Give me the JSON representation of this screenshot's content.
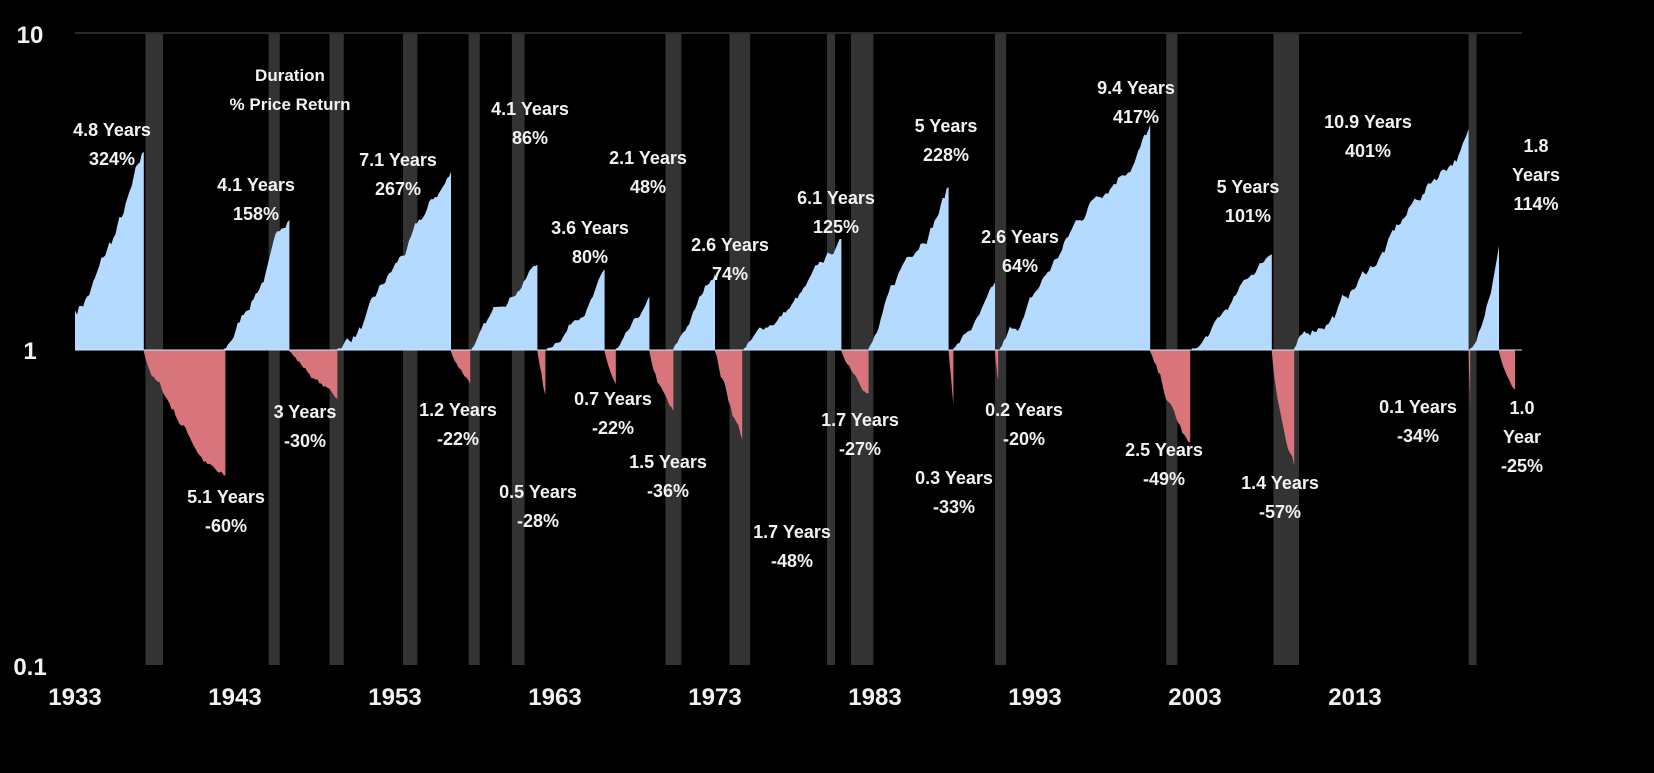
{
  "chart_data": {
    "type": "area",
    "title": "",
    "legend_annotation": [
      "Duration",
      "% Price Return"
    ],
    "y_scale": "log",
    "ylim": [
      0.1,
      10
    ],
    "xlim": [
      1933,
      2023
    ],
    "y_ticks": [
      "10",
      "1",
      "0.1"
    ],
    "x_ticks": [
      "1933",
      "1943",
      "1953",
      "1963",
      "1973",
      "1983",
      "1993",
      "2003",
      "2013"
    ],
    "grid": false,
    "colors": {
      "background": "#000000",
      "bull": "#b5daff",
      "bear": "#d8757c",
      "recession": "#333333",
      "text": "#f2f2f2"
    },
    "episodes": [
      {
        "type": "bull",
        "start": 1932.5,
        "duration": "4.8 Years",
        "years": 4.8,
        "return": "324%",
        "pct": 324
      },
      {
        "type": "bear",
        "start": 1937.3,
        "duration": "5.1 Years",
        "years": 5.1,
        "return": "-60%",
        "pct": -60
      },
      {
        "type": "bull",
        "start": 1942.3,
        "duration": "4.1 Years",
        "years": 4.1,
        "return": "158%",
        "pct": 158
      },
      {
        "type": "bear",
        "start": 1946.4,
        "duration": "3 Years",
        "years": 3.0,
        "return": "-30%",
        "pct": -30
      },
      {
        "type": "bull",
        "start": 1949.4,
        "duration": "7.1 Years",
        "years": 7.1,
        "return": "267%",
        "pct": 267
      },
      {
        "type": "bear",
        "start": 1956.5,
        "duration": "1.2 Years",
        "years": 1.2,
        "return": "-22%",
        "pct": -22
      },
      {
        "type": "bull",
        "start": 1957.8,
        "duration": "4.1 Years",
        "years": 4.1,
        "return": "86%",
        "pct": 86
      },
      {
        "type": "bear",
        "start": 1961.9,
        "duration": "0.5 Years",
        "years": 0.5,
        "return": "-28%",
        "pct": -28
      },
      {
        "type": "bull",
        "start": 1962.5,
        "duration": "3.6 Years",
        "years": 3.6,
        "return": "80%",
        "pct": 80
      },
      {
        "type": "bear",
        "start": 1966.1,
        "duration": "0.7 Years",
        "years": 0.7,
        "return": "-22%",
        "pct": -22
      },
      {
        "type": "bull",
        "start": 1966.8,
        "duration": "2.1 Years",
        "years": 2.1,
        "return": "48%",
        "pct": 48
      },
      {
        "type": "bear",
        "start": 1968.9,
        "duration": "1.5 Years",
        "years": 1.5,
        "return": "-36%",
        "pct": -36
      },
      {
        "type": "bull",
        "start": 1970.4,
        "duration": "2.6 Years",
        "years": 2.6,
        "return": "74%",
        "pct": 74
      },
      {
        "type": "bear",
        "start": 1973.0,
        "duration": "1.7 Years",
        "years": 1.7,
        "return": "-48%",
        "pct": -48
      },
      {
        "type": "bull",
        "start": 1974.8,
        "duration": "6.1 Years",
        "years": 6.1,
        "return": "125%",
        "pct": 125
      },
      {
        "type": "bear",
        "start": 1980.9,
        "duration": "1.7 Years",
        "years": 1.7,
        "return": "-27%",
        "pct": -27
      },
      {
        "type": "bull",
        "start": 1982.6,
        "duration": "5 Years",
        "years": 5.0,
        "return": "228%",
        "pct": 228
      },
      {
        "type": "bear",
        "start": 1987.6,
        "duration": "0.3 Years",
        "years": 0.3,
        "return": "-33%",
        "pct": -33
      },
      {
        "type": "bull",
        "start": 1987.9,
        "duration": "2.6 Years",
        "years": 2.6,
        "return": "64%",
        "pct": 64
      },
      {
        "type": "bear",
        "start": 1990.5,
        "duration": "0.2 Years",
        "years": 0.2,
        "return": "-20%",
        "pct": -20
      },
      {
        "type": "bull",
        "start": 1990.8,
        "duration": "9.4 Years",
        "years": 9.4,
        "return": "417%",
        "pct": 417
      },
      {
        "type": "bear",
        "start": 2000.2,
        "duration": "2.5 Years",
        "years": 2.5,
        "return": "-49%",
        "pct": -49
      },
      {
        "type": "bull",
        "start": 2002.8,
        "duration": "5 Years",
        "years": 5.0,
        "return": "101%",
        "pct": 101
      },
      {
        "type": "bear",
        "start": 2007.8,
        "duration": "1.4 Years",
        "years": 1.4,
        "return": "-57%",
        "pct": -57
      },
      {
        "type": "bull",
        "start": 2009.2,
        "duration": "10.9 Years",
        "years": 10.9,
        "return": "401%",
        "pct": 401
      },
      {
        "type": "bear",
        "start": 2020.1,
        "duration": "0.1 Years",
        "years": 0.1,
        "return": "-34%",
        "pct": -34
      },
      {
        "type": "bull",
        "start": 2020.2,
        "duration": "1.8 Years",
        "years": 1.8,
        "return": "114%",
        "pct": 114
      },
      {
        "type": "bear",
        "start": 2022.0,
        "duration": "1.0 Year",
        "years": 1.0,
        "return": "-25%",
        "pct": -25
      }
    ],
    "recessions": [
      [
        1937.4,
        1938.5
      ],
      [
        1945.1,
        1945.8
      ],
      [
        1948.9,
        1949.8
      ],
      [
        1953.5,
        1954.4
      ],
      [
        1957.6,
        1958.3
      ],
      [
        1960.3,
        1961.1
      ],
      [
        1969.9,
        1970.9
      ],
      [
        1973.9,
        1975.2
      ],
      [
        1980.0,
        1980.5
      ],
      [
        1981.5,
        1982.9
      ],
      [
        1990.5,
        1991.2
      ],
      [
        2001.2,
        2001.9
      ],
      [
        2007.9,
        2009.5
      ],
      [
        2020.1,
        2020.4
      ]
    ]
  }
}
